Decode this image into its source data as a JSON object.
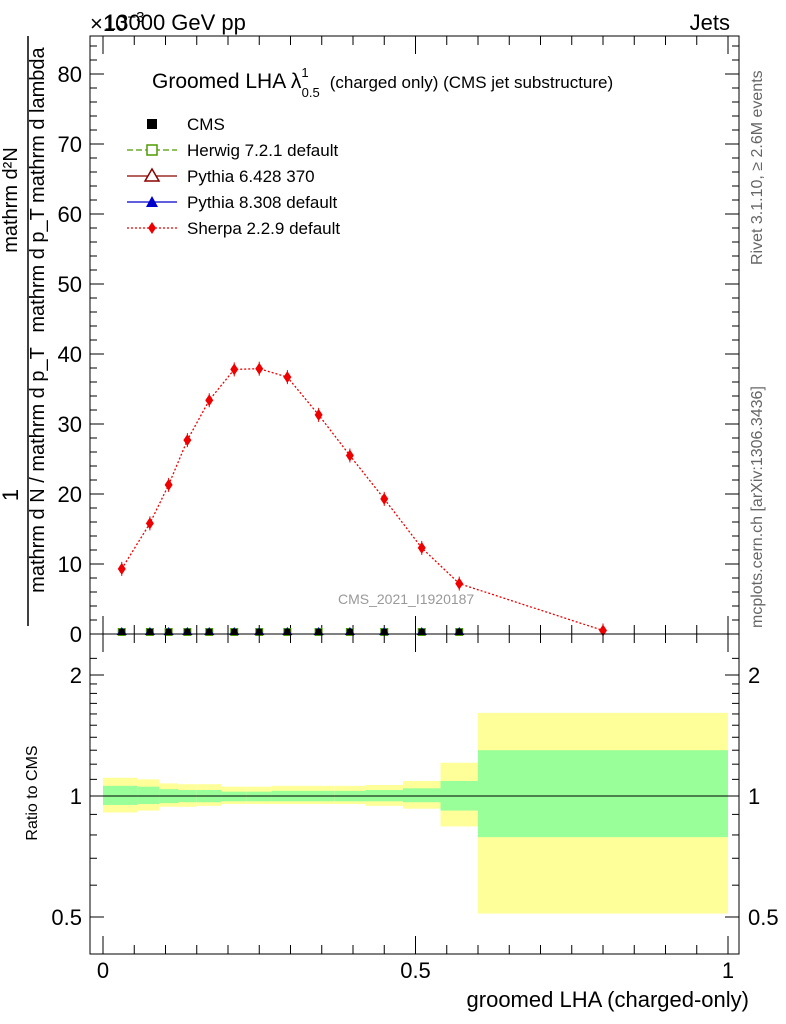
{
  "header": {
    "left": "13000 GeV pp",
    "right": "Jets",
    "exponent": "×10",
    "exponent_power": "−3"
  },
  "side_labels": {
    "rivet": "Rivet 3.1.10, ≥ 2.6M events",
    "mcplots": "mcplots.cern.ch [arXiv:1306.3436]"
  },
  "watermark": "CMS_2021_I1920187",
  "title": {
    "main": "Groomed LHA",
    "lambda": "λ",
    "sup": "1",
    "sub": "0.5",
    "rest": "(charged only) (CMS jet substructure)"
  },
  "legend": [
    {
      "name": "CMS",
      "color": "#000000",
      "marker": "square-filled",
      "line": "none"
    },
    {
      "name": "Herwig 7.2.1 default",
      "color": "#4f9a00",
      "marker": "square-open",
      "line": "dashed"
    },
    {
      "name": "Pythia 6.428 370",
      "color": "#8b0000",
      "marker": "triangle-open",
      "line": "solid"
    },
    {
      "name": "Pythia 8.308 default",
      "color": "#0000cc",
      "marker": "triangle-filled",
      "line": "solid"
    },
    {
      "name": "Sherpa 2.2.9 default",
      "color": "#ee0000",
      "marker": "diamond-filled",
      "line": "dotted"
    }
  ],
  "y_axis_label": {
    "numerator": "1",
    "denominator": "mathrm d N / mathrm d p_T",
    "right_top": "mathrm d²N",
    "right_bottom": "mathrm d p_T mathrm d lambda"
  },
  "ratio_label": "Ratio to CMS",
  "x_axis_label": "groomed LHA (charged-only)",
  "chart_data": {
    "type": "line",
    "main": {
      "xlim": [
        0,
        1
      ],
      "ylim": [
        0,
        86
      ],
      "y_scale_note": "×10^-3",
      "yticks": [
        0,
        10,
        20,
        30,
        40,
        50,
        60,
        70,
        80
      ],
      "sherpa": {
        "name": "Sherpa 2.2.9 default",
        "x": [
          0.03,
          0.075,
          0.105,
          0.135,
          0.17,
          0.21,
          0.25,
          0.295,
          0.345,
          0.395,
          0.45,
          0.51,
          0.57,
          0.8
        ],
        "y": [
          9.3,
          15.8,
          21.3,
          27.7,
          33.4,
          37.8,
          37.9,
          36.7,
          31.3,
          25.5,
          19.3,
          12.3,
          7.2,
          0.5
        ]
      },
      "zero_markers_x": [
        0.03,
        0.075,
        0.105,
        0.135,
        0.17,
        0.21,
        0.25,
        0.295,
        0.345,
        0.395,
        0.45,
        0.51,
        0.57
      ]
    },
    "ratio": {
      "ylim": [
        0.38,
        2.35
      ],
      "yticks": [
        0.5,
        1,
        2
      ],
      "bins": [
        {
          "lo": 0.0,
          "hi": 0.055,
          "stat": [
            0.95,
            1.06
          ],
          "total": [
            0.91,
            1.11
          ]
        },
        {
          "lo": 0.055,
          "hi": 0.09,
          "stat": [
            0.955,
            1.055
          ],
          "total": [
            0.92,
            1.1
          ]
        },
        {
          "lo": 0.09,
          "hi": 0.12,
          "stat": [
            0.96,
            1.04
          ],
          "total": [
            0.94,
            1.075
          ]
        },
        {
          "lo": 0.12,
          "hi": 0.15,
          "stat": [
            0.965,
            1.035
          ],
          "total": [
            0.94,
            1.07
          ]
        },
        {
          "lo": 0.15,
          "hi": 0.19,
          "stat": [
            0.965,
            1.035
          ],
          "total": [
            0.945,
            1.07
          ]
        },
        {
          "lo": 0.19,
          "hi": 0.23,
          "stat": [
            0.97,
            1.025
          ],
          "total": [
            0.955,
            1.055
          ]
        },
        {
          "lo": 0.23,
          "hi": 0.27,
          "stat": [
            0.97,
            1.025
          ],
          "total": [
            0.955,
            1.055
          ]
        },
        {
          "lo": 0.27,
          "hi": 0.32,
          "stat": [
            0.97,
            1.03
          ],
          "total": [
            0.955,
            1.06
          ]
        },
        {
          "lo": 0.32,
          "hi": 0.37,
          "stat": [
            0.97,
            1.03
          ],
          "total": [
            0.955,
            1.06
          ]
        },
        {
          "lo": 0.37,
          "hi": 0.42,
          "stat": [
            0.97,
            1.03
          ],
          "total": [
            0.955,
            1.06
          ]
        },
        {
          "lo": 0.42,
          "hi": 0.48,
          "stat": [
            0.97,
            1.035
          ],
          "total": [
            0.945,
            1.065
          ]
        },
        {
          "lo": 0.48,
          "hi": 0.54,
          "stat": [
            0.965,
            1.045
          ],
          "total": [
            0.93,
            1.09
          ]
        },
        {
          "lo": 0.54,
          "hi": 0.6,
          "stat": [
            0.92,
            1.09
          ],
          "total": [
            0.84,
            1.21
          ]
        },
        {
          "lo": 0.6,
          "hi": 1.0,
          "stat": [
            0.79,
            1.3
          ],
          "total": [
            0.51,
            1.61
          ]
        }
      ],
      "stat_color": "#99ff99",
      "total_color": "#ffff99"
    },
    "xticks": [
      0,
      0.5,
      1
    ],
    "xtick_labels": [
      "0",
      "0.5",
      "1"
    ]
  }
}
